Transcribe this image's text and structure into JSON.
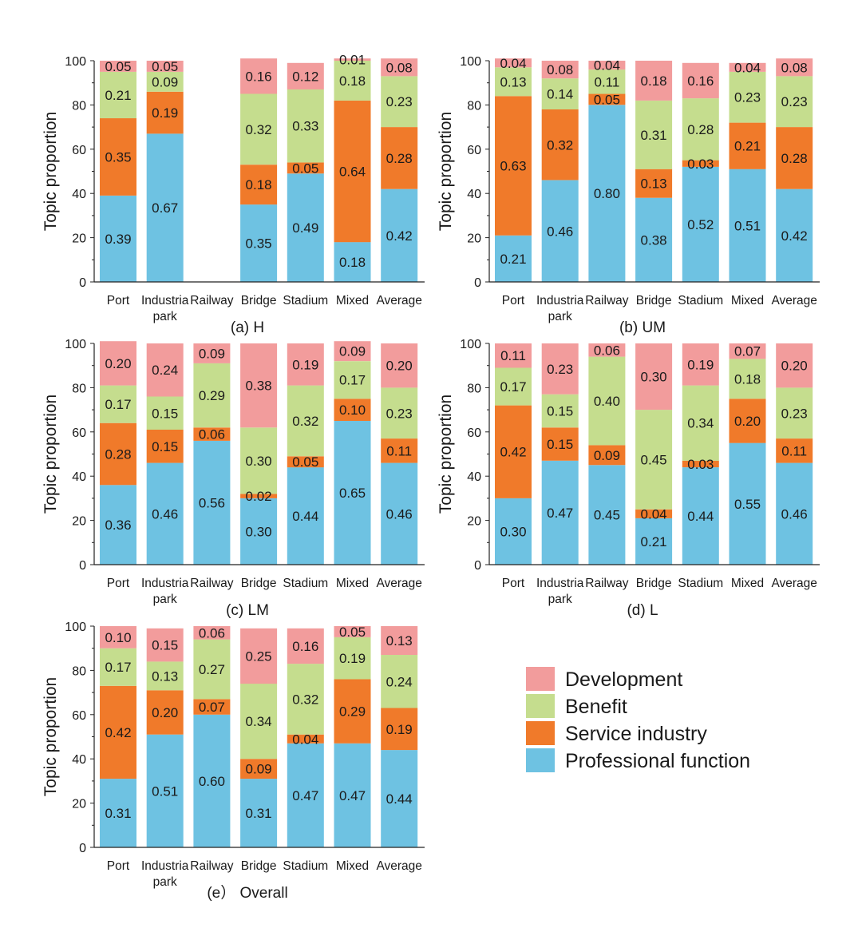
{
  "chart_data": {
    "type": "bar",
    "stacked": true,
    "ylabel": "Topic proportion",
    "ylim": [
      0,
      100
    ],
    "yticks": [
      "0",
      "20",
      "40",
      "60",
      "80",
      "100"
    ],
    "categories": [
      "Port",
      "Industria park",
      "Railway",
      "Bridge",
      "Stadium",
      "Mixed",
      "Average"
    ],
    "category_lines": [
      [
        "Port"
      ],
      [
        "Industria",
        "park"
      ],
      [
        "Railway"
      ],
      [
        "Bridge"
      ],
      [
        "Stadium"
      ],
      [
        "Mixed"
      ],
      [
        "Average"
      ]
    ],
    "series_names": [
      "Professional function",
      "Service industry",
      "Benefit",
      "Development"
    ],
    "series_colors": [
      "#6EC2E2",
      "#F07A2A",
      "#C5DD8E",
      "#F29C9C"
    ],
    "legend_order": [
      "Development",
      "Benefit",
      "Service industry",
      "Professional function"
    ],
    "panels": [
      {
        "title": "(a) H",
        "values": [
          [
            0.39,
            0.35,
            0.21,
            0.05
          ],
          [
            0.67,
            0.19,
            0.09,
            0.05
          ],
          null,
          [
            0.35,
            0.18,
            0.32,
            0.16
          ],
          [
            0.49,
            0.05,
            0.33,
            0.12
          ],
          [
            0.18,
            0.64,
            0.18,
            0.01
          ],
          [
            0.42,
            0.28,
            0.23,
            0.08
          ]
        ]
      },
      {
        "title": "(b) UM",
        "values": [
          [
            0.21,
            0.63,
            0.13,
            0.04
          ],
          [
            0.46,
            0.32,
            0.14,
            0.08
          ],
          [
            0.8,
            0.05,
            0.11,
            0.04
          ],
          [
            0.38,
            0.13,
            0.31,
            0.18
          ],
          [
            0.52,
            0.03,
            0.28,
            0.16
          ],
          [
            0.51,
            0.21,
            0.23,
            0.04
          ],
          [
            0.42,
            0.28,
            0.23,
            0.08
          ]
        ]
      },
      {
        "title": "(c) LM",
        "values": [
          [
            0.36,
            0.28,
            0.17,
            0.2
          ],
          [
            0.46,
            0.15,
            0.15,
            0.24
          ],
          [
            0.56,
            0.06,
            0.29,
            0.09
          ],
          [
            0.3,
            0.02,
            0.3,
            0.38
          ],
          [
            0.44,
            0.05,
            0.32,
            0.19
          ],
          [
            0.65,
            0.1,
            0.17,
            0.09
          ],
          [
            0.46,
            0.11,
            0.23,
            0.2
          ]
        ]
      },
      {
        "title": "(d) L",
        "values": [
          [
            0.3,
            0.42,
            0.17,
            0.11
          ],
          [
            0.47,
            0.15,
            0.15,
            0.23
          ],
          [
            0.45,
            0.09,
            0.4,
            0.06
          ],
          [
            0.21,
            0.04,
            0.45,
            0.3
          ],
          [
            0.44,
            0.03,
            0.34,
            0.19
          ],
          [
            0.55,
            0.2,
            0.18,
            0.07
          ],
          [
            0.46,
            0.11,
            0.23,
            0.2
          ]
        ]
      },
      {
        "title": "(e） Overall",
        "values": [
          [
            0.31,
            0.42,
            0.17,
            0.1
          ],
          [
            0.51,
            0.2,
            0.13,
            0.15
          ],
          [
            0.6,
            0.07,
            0.27,
            0.06
          ],
          [
            0.31,
            0.09,
            0.34,
            0.25
          ],
          [
            0.47,
            0.04,
            0.32,
            0.16
          ],
          [
            0.47,
            0.29,
            0.19,
            0.05
          ],
          [
            0.44,
            0.19,
            0.24,
            0.13
          ]
        ]
      }
    ]
  }
}
